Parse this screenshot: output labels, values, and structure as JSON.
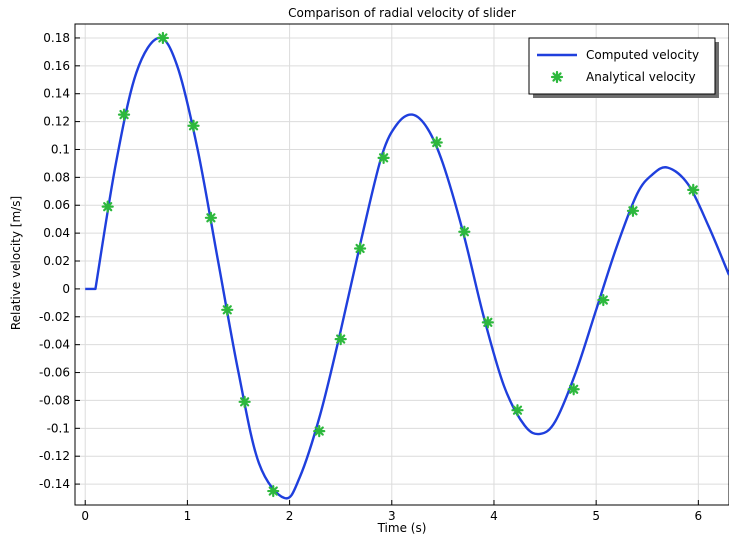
{
  "chart_data": {
    "type": "line",
    "title": "Comparison of radial velocity of slider",
    "xlabel": "Time (s)",
    "ylabel": "Relative velocity [m/s]",
    "xlim": [
      -0.1,
      6.3
    ],
    "ylim": [
      -0.155,
      0.19
    ],
    "grid": true,
    "legend_position": "top-right",
    "x_ticks": [
      0,
      1,
      2,
      3,
      4,
      5,
      6
    ],
    "x_tick_labels": [
      "0",
      "1",
      "2",
      "3",
      "4",
      "5",
      "6"
    ],
    "y_ticks": [
      0.18,
      0.16,
      0.14,
      0.12,
      0.1,
      0.08,
      0.06,
      0.04,
      0.02,
      0,
      -0.02,
      -0.04,
      -0.06,
      -0.08,
      -0.1,
      -0.12,
      -0.14
    ],
    "y_tick_labels": [
      "0.18",
      "0.16",
      "0.14",
      "0.12",
      "0.1",
      "0.08",
      "0.06",
      "0.04",
      "0.02",
      "0",
      "-0.02",
      "-0.04",
      "-0.06",
      "-0.08",
      "-0.1",
      "-0.12",
      "-0.14"
    ],
    "series": [
      {
        "name": "Computed velocity",
        "style": "line",
        "color": "#1f3fdd",
        "x": [
          0,
          0.1,
          0.3,
          0.5,
          0.72,
          0.9,
          1.1,
          1.3,
          1.5,
          1.7,
          1.95,
          2.1,
          2.3,
          2.5,
          2.7,
          2.9,
          3.05,
          3.2,
          3.35,
          3.5,
          3.7,
          3.9,
          4.1,
          4.3,
          4.45,
          4.6,
          4.8,
          5.0,
          5.2,
          5.4,
          5.55,
          5.7,
          5.9,
          6.1,
          6.3
        ],
        "y": [
          0,
          0,
          0.09,
          0.155,
          0.18,
          0.16,
          0.1,
          0.02,
          -0.06,
          -0.125,
          -0.15,
          -0.135,
          -0.09,
          -0.03,
          0.035,
          0.095,
          0.118,
          0.125,
          0.115,
          0.09,
          0.04,
          -0.02,
          -0.07,
          -0.098,
          -0.104,
          -0.095,
          -0.06,
          -0.015,
          0.03,
          0.068,
          0.082,
          0.087,
          0.075,
          0.045,
          0.01
        ]
      },
      {
        "name": "Analytical velocity",
        "style": "markers",
        "marker": "asterisk",
        "color": "#2db83d",
        "x": [
          0.22,
          0.38,
          0.76,
          1.06,
          1.23,
          1.39,
          1.56,
          1.84,
          2.29,
          2.5,
          2.69,
          2.92,
          3.44,
          3.71,
          3.94,
          4.23,
          4.78,
          5.07,
          5.36,
          5.95
        ],
        "y": [
          0.059,
          0.125,
          0.18,
          0.117,
          0.051,
          -0.015,
          -0.081,
          -0.145,
          -0.102,
          -0.036,
          0.029,
          0.094,
          0.105,
          0.041,
          -0.024,
          -0.087,
          -0.072,
          -0.008,
          0.056,
          0.071
        ]
      }
    ]
  }
}
